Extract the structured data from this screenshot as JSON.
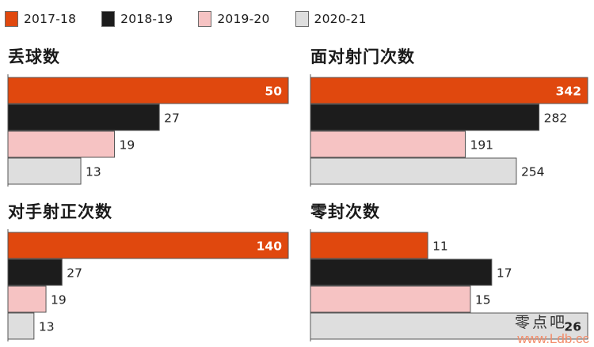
{
  "legend": [
    {
      "label": "2017-18",
      "color": "#e0480e"
    },
    {
      "label": "2018-19",
      "color": "#1c1c1c"
    },
    {
      "label": "2019-20",
      "color": "#f6c3c3"
    },
    {
      "label": "2020-21",
      "color": "#dedede"
    }
  ],
  "chart_data": [
    {
      "type": "bar",
      "orientation": "horizontal",
      "title": "丢球数",
      "categories": [
        "2017-18",
        "2018-19",
        "2019-20",
        "2020-21"
      ],
      "values": [
        50,
        27,
        19,
        13
      ],
      "xlim": [
        0,
        50
      ]
    },
    {
      "type": "bar",
      "orientation": "horizontal",
      "title": "面对射门次数",
      "categories": [
        "2017-18",
        "2018-19",
        "2019-20",
        "2020-21"
      ],
      "values": [
        342,
        282,
        191,
        254
      ],
      "xlim": [
        0,
        342
      ]
    },
    {
      "type": "bar",
      "orientation": "horizontal",
      "title": "对手射正次数",
      "categories": [
        "2017-18",
        "2018-19",
        "2019-20",
        "2020-21"
      ],
      "values": [
        140,
        27,
        19,
        13
      ],
      "value_labels_note": "bar lengths as drawn",
      "xlim": [
        0,
        140
      ]
    },
    {
      "type": "bar",
      "orientation": "horizontal",
      "title": "零封次数",
      "categories": [
        "2017-18",
        "2018-19",
        "2019-20",
        "2020-21"
      ],
      "values": [
        11,
        17,
        15,
        26
      ],
      "xlim": [
        0,
        26
      ]
    }
  ],
  "watermark": {
    "top": "零点吧",
    "bottom": "www.Ldb.cc"
  }
}
